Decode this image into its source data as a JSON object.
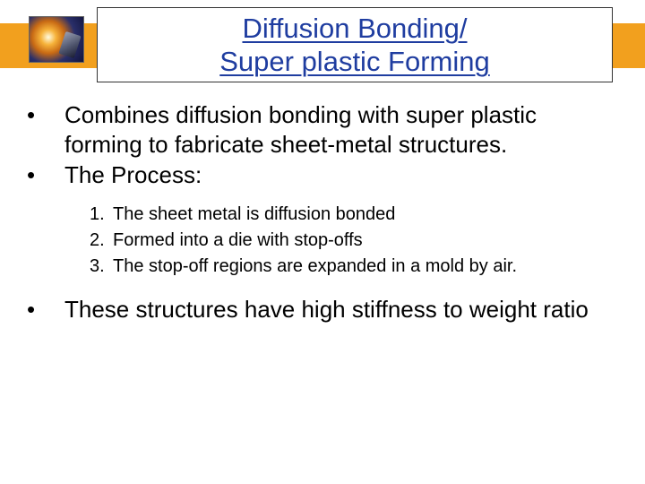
{
  "colors": {
    "band": "#f2a01e",
    "title_text": "#1f3da0",
    "body_text": "#000000",
    "background": "#ffffff",
    "title_border": "#333333"
  },
  "typography": {
    "title_fontsize_pt": 24,
    "body_fontsize_pt": 20,
    "sub_fontsize_pt": 15,
    "family": "Arial"
  },
  "title": {
    "line1": "Diffusion Bonding/",
    "line2": "Super plastic Forming"
  },
  "bullets": [
    {
      "text": "Combines diffusion bonding with super plastic forming to fabricate sheet-metal structures."
    },
    {
      "text": "The Process:"
    }
  ],
  "numbered": [
    {
      "n": "1.",
      "text": "The sheet metal is diffusion bonded"
    },
    {
      "n": "2.",
      "text": "Formed into a die with stop-offs"
    },
    {
      "n": "3.",
      "text": "The stop-off regions are expanded in a mold by air."
    }
  ],
  "bullets_after": [
    {
      "text": "These structures have high stiffness to weight ratio"
    }
  ]
}
